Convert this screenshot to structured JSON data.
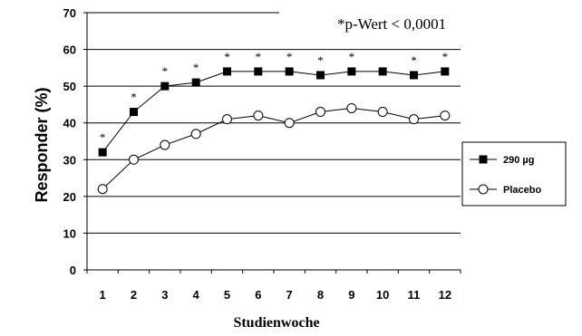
{
  "chart_data": {
    "type": "line",
    "note": "*p-Wert < 0,0001",
    "xlabel": "Studienwoche",
    "ylabel": "Responder (%)",
    "x": [
      1,
      2,
      3,
      4,
      5,
      6,
      7,
      8,
      9,
      10,
      11,
      12
    ],
    "ylim": [
      0,
      70
    ],
    "yticks": [
      0,
      10,
      20,
      30,
      40,
      50,
      60,
      70
    ],
    "grid": "horizontal",
    "legend_position": "right",
    "series": [
      {
        "name": "290 µg",
        "marker": "filled-square",
        "color": "#000000",
        "values": [
          32,
          43,
          50,
          51,
          54,
          54,
          54,
          53,
          54,
          54,
          53,
          54
        ]
      },
      {
        "name": "Placebo",
        "marker": "open-circle",
        "color": "#000000",
        "values": [
          22,
          30,
          34,
          37,
          41,
          42,
          40,
          43,
          44,
          43,
          41,
          42
        ]
      }
    ],
    "significance_marker": "*",
    "significant_weeks": [
      1,
      2,
      3,
      4,
      5,
      6,
      7,
      8,
      9,
      11,
      12
    ]
  }
}
